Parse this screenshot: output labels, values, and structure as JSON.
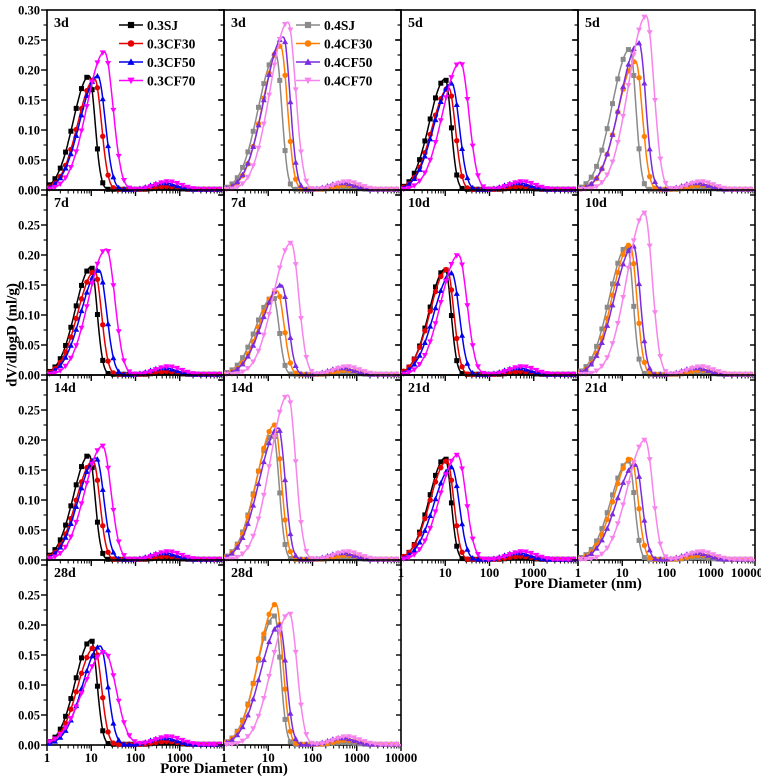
{
  "chart_data": {
    "type": "line",
    "title": "",
    "xlabel": "Pore Diameter (nm)",
    "ylabel": "dV/dlogD (ml/g)",
    "x_scale": "log",
    "x_range_nm": [
      1,
      10000
    ],
    "x_tick_labels": [
      "1",
      "10",
      "100",
      "1000",
      "10000"
    ],
    "y_major_step": 0.05,
    "y_tick_labels_first_row": [
      "0.00",
      "0.05",
      "0.10",
      "0.15",
      "0.20",
      "0.25",
      "0.30"
    ],
    "y_tick_labels_other_rows": [
      "0.00",
      "0.05",
      "0.10",
      "0.15",
      "0.20",
      "0.25"
    ],
    "grid": false,
    "legend_position": "top-inside-first-two-panels",
    "series_styles": {
      "0.3SJ": {
        "color": "#000000",
        "marker": "square",
        "width_left_log": 0.36,
        "width_right_log": 0.13,
        "bump_nm": 480,
        "bump_value": 0.004
      },
      "0.3CF30": {
        "color": "#e60000",
        "marker": "circle",
        "width_left_log": 0.38,
        "width_right_log": 0.15,
        "bump_nm": 500,
        "bump_value": 0.006
      },
      "0.3CF50": {
        "color": "#0000ee",
        "marker": "triangle-up",
        "width_left_log": 0.4,
        "width_right_log": 0.17,
        "bump_nm": 420,
        "bump_value": 0.012
      },
      "0.3CF70": {
        "color": "#ff00ff",
        "marker": "triangle-down",
        "width_left_log": 0.4,
        "width_right_log": 0.19,
        "bump_nm": 550,
        "bump_value": 0.014
      },
      "0.4SJ": {
        "color": "#8a8a8a",
        "marker": "square",
        "width_left_log": 0.4,
        "width_right_log": 0.13,
        "bump_nm": 500,
        "bump_value": 0.004
      },
      "0.4CF30": {
        "color": "#ff7f00",
        "marker": "circle",
        "width_left_log": 0.4,
        "width_right_log": 0.15,
        "bump_nm": 600,
        "bump_value": 0.008
      },
      "0.4CF50": {
        "color": "#7b2be0",
        "marker": "triangle-up",
        "width_left_log": 0.43,
        "width_right_log": 0.15,
        "bump_nm": 450,
        "bump_value": 0.012
      },
      "0.4CF70": {
        "color": "#f783ec",
        "marker": "triangle-down",
        "width_left_log": 0.4,
        "width_right_log": 0.17,
        "bump_nm": 600,
        "bump_value": 0.014
      }
    },
    "panels": [
      {
        "age": "3d",
        "mix": "0.3",
        "legend": [
          "0.3SJ",
          "0.3CF30",
          "0.3CF50",
          "0.3CF70"
        ],
        "series": [
          {
            "name": "0.3SJ",
            "peak_nm": 9,
            "peak_value": 0.19
          },
          {
            "name": "0.3CF30",
            "peak_nm": 12,
            "peak_value": 0.185
          },
          {
            "name": "0.3CF50",
            "peak_nm": 14,
            "peak_value": 0.19
          },
          {
            "name": "0.3CF70",
            "peak_nm": 20,
            "peak_value": 0.23
          }
        ]
      },
      {
        "age": "3d",
        "mix": "0.4",
        "legend": [
          "0.4SJ",
          "0.4CF30",
          "0.4CF50",
          "0.4CF70"
        ],
        "series": [
          {
            "name": "0.4SJ",
            "peak_nm": 15,
            "peak_value": 0.225
          },
          {
            "name": "0.4CF30",
            "peak_nm": 19,
            "peak_value": 0.24
          },
          {
            "name": "0.4CF50",
            "peak_nm": 22,
            "peak_value": 0.255
          },
          {
            "name": "0.4CF70",
            "peak_nm": 28,
            "peak_value": 0.28
          }
        ]
      },
      {
        "age": "5d",
        "mix": "0.3",
        "series": [
          {
            "name": "0.3SJ",
            "peak_nm": 10,
            "peak_value": 0.185
          },
          {
            "name": "0.3CF30",
            "peak_nm": 12,
            "peak_value": 0.17
          },
          {
            "name": "0.3CF50",
            "peak_nm": 14,
            "peak_value": 0.178
          },
          {
            "name": "0.3CF70",
            "peak_nm": 22,
            "peak_value": 0.213
          }
        ]
      },
      {
        "age": "5d",
        "mix": "0.4",
        "series": [
          {
            "name": "0.4SJ",
            "peak_nm": 15,
            "peak_value": 0.235
          },
          {
            "name": "0.4CF30",
            "peak_nm": 20,
            "peak_value": 0.215
          },
          {
            "name": "0.4CF50",
            "peak_nm": 24,
            "peak_value": 0.245
          },
          {
            "name": "0.4CF70",
            "peak_nm": 35,
            "peak_value": 0.29
          }
        ]
      },
      {
        "age": "7d",
        "mix": "0.3",
        "series": [
          {
            "name": "0.3SJ",
            "peak_nm": 10,
            "peak_value": 0.18
          },
          {
            "name": "0.3CF30",
            "peak_nm": 12,
            "peak_value": 0.173
          },
          {
            "name": "0.3CF50",
            "peak_nm": 15,
            "peak_value": 0.175
          },
          {
            "name": "0.3CF70",
            "peak_nm": 22,
            "peak_value": 0.21
          }
        ]
      },
      {
        "age": "7d",
        "mix": "0.4",
        "series": [
          {
            "name": "0.4SJ",
            "peak_nm": 13,
            "peak_value": 0.13
          },
          {
            "name": "0.4CF30",
            "peak_nm": 16,
            "peak_value": 0.14
          },
          {
            "name": "0.4CF50",
            "peak_nm": 20,
            "peak_value": 0.15
          },
          {
            "name": "0.4CF70",
            "peak_nm": 33,
            "peak_value": 0.22
          }
        ]
      },
      {
        "age": "10d",
        "mix": "0.3",
        "series": [
          {
            "name": "0.3SJ",
            "peak_nm": 10,
            "peak_value": 0.177
          },
          {
            "name": "0.3CF30",
            "peak_nm": 11,
            "peak_value": 0.176
          },
          {
            "name": "0.3CF50",
            "peak_nm": 14,
            "peak_value": 0.17
          },
          {
            "name": "0.3CF70",
            "peak_nm": 20,
            "peak_value": 0.2
          }
        ]
      },
      {
        "age": "10d",
        "mix": "0.4",
        "series": [
          {
            "name": "0.4SJ",
            "peak_nm": 13,
            "peak_value": 0.215
          },
          {
            "name": "0.4CF30",
            "peak_nm": 15,
            "peak_value": 0.217
          },
          {
            "name": "0.4CF50",
            "peak_nm": 18,
            "peak_value": 0.215
          },
          {
            "name": "0.4CF70",
            "peak_nm": 32,
            "peak_value": 0.27
          }
        ]
      },
      {
        "age": "14d",
        "mix": "0.3",
        "series": [
          {
            "name": "0.3SJ",
            "peak_nm": 9,
            "peak_value": 0.175
          },
          {
            "name": "0.3CF30",
            "peak_nm": 11,
            "peak_value": 0.165
          },
          {
            "name": "0.3CF50",
            "peak_nm": 13,
            "peak_value": 0.17
          },
          {
            "name": "0.3CF70",
            "peak_nm": 18,
            "peak_value": 0.19
          }
        ]
      },
      {
        "age": "14d",
        "mix": "0.4",
        "series": [
          {
            "name": "0.4SJ",
            "peak_nm": 13,
            "peak_value": 0.21
          },
          {
            "name": "0.4CF30",
            "peak_nm": 14,
            "peak_value": 0.225
          },
          {
            "name": "0.4CF50",
            "peak_nm": 17,
            "peak_value": 0.22
          },
          {
            "name": "0.4CF70",
            "peak_nm": 28,
            "peak_value": 0.275
          }
        ]
      },
      {
        "age": "21d",
        "mix": "0.3",
        "series": [
          {
            "name": "0.3SJ",
            "peak_nm": 10,
            "peak_value": 0.17
          },
          {
            "name": "0.3CF30",
            "peak_nm": 11,
            "peak_value": 0.165
          },
          {
            "name": "0.3CF50",
            "peak_nm": 14,
            "peak_value": 0.155
          },
          {
            "name": "0.3CF70",
            "peak_nm": 19,
            "peak_value": 0.175
          }
        ]
      },
      {
        "age": "21d",
        "mix": "0.4",
        "series": [
          {
            "name": "0.4SJ",
            "peak_nm": 14,
            "peak_value": 0.165
          },
          {
            "name": "0.4CF30",
            "peak_nm": 16,
            "peak_value": 0.17
          },
          {
            "name": "0.4CF50",
            "peak_nm": 20,
            "peak_value": 0.16
          },
          {
            "name": "0.4CF70",
            "peak_nm": 33,
            "peak_value": 0.2
          }
        ]
      },
      {
        "age": "28d",
        "mix": "0.3",
        "series": [
          {
            "name": "0.3SJ",
            "peak_nm": 10,
            "peak_value": 0.175
          },
          {
            "name": "0.3CF30",
            "peak_nm": 12,
            "peak_value": 0.163
          },
          {
            "name": "0.3CF50",
            "peak_nm": 16,
            "peak_value": 0.165
          },
          {
            "name": "0.3CF70",
            "peak_nm": 20,
            "peak_value": 0.155,
            "width_left_log": 0.48,
            "width_right_log": 0.26
          }
        ]
      },
      {
        "age": "28d",
        "mix": "0.4",
        "series": [
          {
            "name": "0.4SJ",
            "peak_nm": 14,
            "peak_value": 0.215
          },
          {
            "name": "0.4CF30",
            "peak_nm": 15,
            "peak_value": 0.235
          },
          {
            "name": "0.4CF50",
            "peak_nm": 18,
            "peak_value": 0.2
          },
          {
            "name": "0.4CF70",
            "peak_nm": 30,
            "peak_value": 0.22
          }
        ]
      }
    ]
  }
}
